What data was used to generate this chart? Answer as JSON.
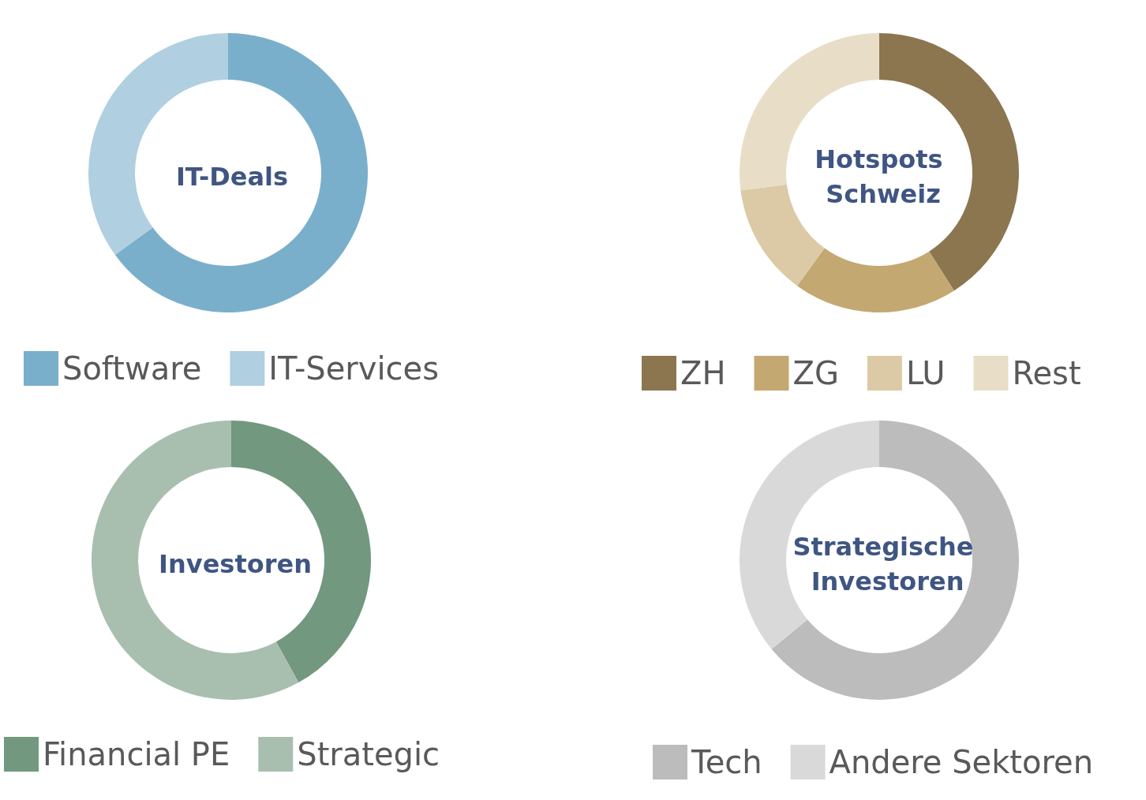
{
  "chart_data": [
    {
      "type": "donut",
      "title": "IT-Deals",
      "categories": [
        "Software",
        "IT-Services"
      ],
      "values": [
        65,
        35
      ],
      "colors": [
        "#7aafcc",
        "#b0cfe0"
      ],
      "legend": "bottom"
    },
    {
      "type": "donut",
      "title": "Hotspots Schweiz",
      "categories": [
        "ZH",
        "ZG",
        "LU",
        "Rest"
      ],
      "values": [
        41,
        19,
        13,
        27
      ],
      "colors": [
        "#8b7650",
        "#c4a871",
        "#dccaa6",
        "#e8dec7"
      ],
      "legend": "bottom"
    },
    {
      "type": "donut",
      "title": "Investoren",
      "categories": [
        "Financial PE",
        "Strategic"
      ],
      "values": [
        42,
        58
      ],
      "colors": [
        "#72987f",
        "#a8bfb0"
      ],
      "legend": "bottom"
    },
    {
      "type": "donut",
      "title": "Strategische Investoren",
      "categories": [
        "Tech",
        "Andere Sektoren"
      ],
      "values": [
        64,
        36
      ],
      "colors": [
        "#bcbcbc",
        "#d9d9d9"
      ],
      "legend": "bottom"
    }
  ]
}
